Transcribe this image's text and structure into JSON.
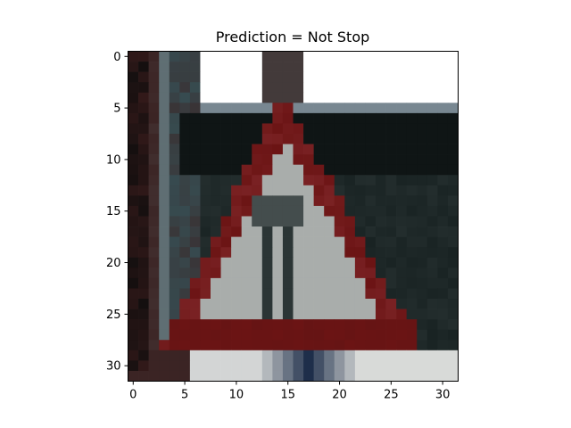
{
  "chart_data": {
    "type": "image",
    "title": "Prediction = Not Stop",
    "xlabel": "",
    "ylabel": "",
    "image_size": [
      32,
      32
    ],
    "xlim": [
      -0.5,
      31.5
    ],
    "ylim": [
      31.5,
      -0.5
    ],
    "x_ticks": [
      0,
      5,
      10,
      15,
      20,
      25,
      30
    ],
    "y_ticks": [
      0,
      5,
      10,
      15,
      20,
      25,
      30
    ],
    "x_tick_labels": [
      "0",
      "5",
      "10",
      "15",
      "20",
      "25",
      "30"
    ],
    "y_tick_labels": [
      "0",
      "5",
      "10",
      "15",
      "20",
      "25",
      "30"
    ],
    "depicted_content": "warning sign",
    "colors": {
      "sign_border": "#6b1414",
      "sign_inner": "#a9adab",
      "sign_symbol": "#2b3535",
      "dark_background": "#0f1515",
      "wood_post": "#3b2424",
      "sky": "#ffffff",
      "bright_ground": "#d8dad8",
      "blue_shadow": "#1e2e4a"
    }
  }
}
